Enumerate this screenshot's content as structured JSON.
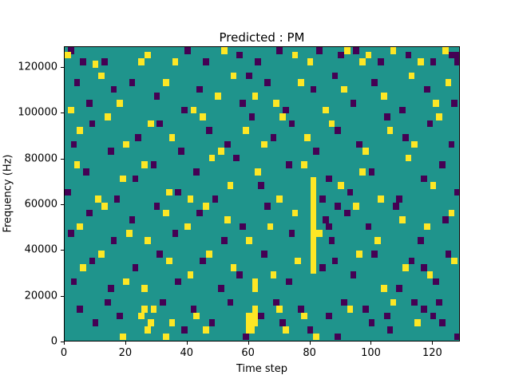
{
  "chart_data": {
    "type": "heatmap",
    "title": "Predicted : PM",
    "xlabel": "Time step",
    "ylabel": "Frequency (Hz)",
    "xlim": [
      0,
      129
    ],
    "ylim": [
      0,
      129000
    ],
    "xticks": [
      0,
      20,
      40,
      60,
      80,
      100,
      120
    ],
    "yticks": [
      0,
      20000,
      40000,
      60000,
      80000,
      100000,
      120000
    ],
    "grid": false,
    "legend": "none",
    "colors": {
      "background": "#1f948c",
      "purple": "#440154",
      "yellow": "#fde725"
    },
    "cell_size": {
      "x": 2,
      "y": 3000
    },
    "cells": [
      [
        2,
        126000,
        0
      ],
      [
        13,
        121000,
        0
      ],
      [
        40,
        126000,
        0
      ],
      [
        46,
        121000,
        0
      ],
      [
        57,
        124000,
        0
      ],
      [
        63,
        121000,
        0
      ],
      [
        70,
        126000,
        0
      ],
      [
        83,
        126000,
        0
      ],
      [
        90,
        124000,
        0
      ],
      [
        95,
        126000,
        0
      ],
      [
        103,
        121000,
        0
      ],
      [
        112,
        124000,
        0
      ],
      [
        120,
        121000,
        0
      ],
      [
        126,
        124000,
        0
      ],
      [
        6,
        121000,
        0
      ],
      [
        128,
        124000,
        0
      ],
      [
        128,
        121000,
        0
      ],
      [
        1,
        124000,
        1
      ],
      [
        10,
        120000,
        1
      ],
      [
        25,
        121000,
        1
      ],
      [
        27,
        124000,
        1
      ],
      [
        36,
        121000,
        1
      ],
      [
        52,
        126000,
        1
      ],
      [
        75,
        124000,
        1
      ],
      [
        80,
        121000,
        1
      ],
      [
        92,
        126000,
        1
      ],
      [
        97,
        121000,
        1
      ],
      [
        99,
        124000,
        1
      ],
      [
        107,
        126000,
        1
      ],
      [
        116,
        121000,
        1
      ],
      [
        124,
        126000,
        1
      ],
      [
        4,
        112000,
        0
      ],
      [
        8,
        103000,
        0
      ],
      [
        16,
        109000,
        0
      ],
      [
        22,
        112000,
        0
      ],
      [
        30,
        106000,
        0
      ],
      [
        39,
        100000,
        0
      ],
      [
        44,
        109000,
        0
      ],
      [
        58,
        103000,
        0
      ],
      [
        66,
        112000,
        0
      ],
      [
        72,
        100000,
        0
      ],
      [
        81,
        109000,
        0
      ],
      [
        88,
        115000,
        0
      ],
      [
        94,
        103000,
        0
      ],
      [
        101,
        112000,
        0
      ],
      [
        110,
        100000,
        0
      ],
      [
        118,
        109000,
        0
      ],
      [
        127,
        103000,
        0
      ],
      [
        60,
        115000,
        0
      ],
      [
        2,
        100000,
        1
      ],
      [
        12,
        115000,
        1
      ],
      [
        18,
        103000,
        1
      ],
      [
        33,
        112000,
        1
      ],
      [
        42,
        100000,
        1
      ],
      [
        50,
        106000,
        1
      ],
      [
        55,
        115000,
        1
      ],
      [
        62,
        106000,
        1
      ],
      [
        69,
        103000,
        1
      ],
      [
        77,
        112000,
        1
      ],
      [
        85,
        100000,
        1
      ],
      [
        91,
        109000,
        1
      ],
      [
        104,
        106000,
        1
      ],
      [
        113,
        115000,
        1
      ],
      [
        121,
        103000,
        1
      ],
      [
        125,
        112000,
        1
      ],
      [
        3,
        85000,
        0
      ],
      [
        9,
        94000,
        0
      ],
      [
        15,
        82000,
        0
      ],
      [
        24,
        88000,
        0
      ],
      [
        31,
        94000,
        0
      ],
      [
        38,
        82000,
        0
      ],
      [
        47,
        91000,
        0
      ],
      [
        53,
        85000,
        0
      ],
      [
        61,
        97000,
        0
      ],
      [
        68,
        88000,
        0
      ],
      [
        74,
        94000,
        0
      ],
      [
        82,
        82000,
        0
      ],
      [
        89,
        91000,
        0
      ],
      [
        96,
        85000,
        0
      ],
      [
        105,
        97000,
        0
      ],
      [
        111,
        88000,
        0
      ],
      [
        119,
        94000,
        0
      ],
      [
        126,
        85000,
        0
      ],
      [
        5,
        91000,
        1
      ],
      [
        14,
        97000,
        1
      ],
      [
        20,
        85000,
        1
      ],
      [
        28,
        94000,
        1
      ],
      [
        35,
        88000,
        1
      ],
      [
        45,
        97000,
        1
      ],
      [
        51,
        82000,
        1
      ],
      [
        59,
        91000,
        1
      ],
      [
        65,
        85000,
        1
      ],
      [
        71,
        97000,
        1
      ],
      [
        79,
        88000,
        1
      ],
      [
        87,
        94000,
        1
      ],
      [
        98,
        82000,
        1
      ],
      [
        106,
        91000,
        1
      ],
      [
        114,
        85000,
        1
      ],
      [
        122,
        97000,
        1
      ],
      [
        1,
        64000,
        0
      ],
      [
        7,
        73000,
        0
      ],
      [
        17,
        61000,
        0
      ],
      [
        23,
        70000,
        0
      ],
      [
        29,
        76000,
        0
      ],
      [
        37,
        64000,
        0
      ],
      [
        43,
        73000,
        0
      ],
      [
        49,
        61000,
        0
      ],
      [
        56,
        79000,
        0
      ],
      [
        64,
        67000,
        0
      ],
      [
        73,
        76000,
        0
      ],
      [
        84,
        61000,
        0
      ],
      [
        86,
        70000,
        0
      ],
      [
        93,
        64000,
        0
      ],
      [
        100,
        73000,
        0
      ],
      [
        109,
        61000,
        0
      ],
      [
        117,
        70000,
        0
      ],
      [
        123,
        76000,
        0
      ],
      [
        128,
        64000,
        0
      ],
      [
        4,
        76000,
        1
      ],
      [
        11,
        61000,
        1
      ],
      [
        19,
        70000,
        1
      ],
      [
        26,
        76000,
        1
      ],
      [
        34,
        64000,
        1
      ],
      [
        41,
        61000,
        1
      ],
      [
        48,
        79000,
        1
      ],
      [
        54,
        67000,
        1
      ],
      [
        63,
        73000,
        1
      ],
      [
        70,
        61000,
        1
      ],
      [
        78,
        76000,
        1
      ],
      [
        90,
        67000,
        1
      ],
      [
        97,
        73000,
        1
      ],
      [
        103,
        61000,
        1
      ],
      [
        112,
        79000,
        1
      ],
      [
        120,
        67000,
        1
      ],
      [
        81,
        30000,
        1
      ],
      [
        81,
        33000,
        1
      ],
      [
        81,
        36000,
        1
      ],
      [
        81,
        39000,
        1
      ],
      [
        81,
        42000,
        1
      ],
      [
        81,
        45000,
        1
      ],
      [
        81,
        48000,
        1
      ],
      [
        81,
        51000,
        1
      ],
      [
        81,
        54000,
        1
      ],
      [
        81,
        57000,
        1
      ],
      [
        81,
        60000,
        1
      ],
      [
        81,
        63000,
        1
      ],
      [
        81,
        66000,
        1
      ],
      [
        81,
        69000,
        1
      ],
      [
        2,
        46000,
        0
      ],
      [
        8,
        55000,
        0
      ],
      [
        16,
        43000,
        0
      ],
      [
        22,
        52000,
        0
      ],
      [
        30,
        58000,
        0
      ],
      [
        36,
        46000,
        0
      ],
      [
        44,
        55000,
        0
      ],
      [
        52,
        43000,
        0
      ],
      [
        58,
        49000,
        0
      ],
      [
        66,
        58000,
        0
      ],
      [
        74,
        46000,
        0
      ],
      [
        85,
        52000,
        0
      ],
      [
        87,
        43000,
        0
      ],
      [
        92,
        55000,
        0
      ],
      [
        99,
        49000,
        0
      ],
      [
        108,
        58000,
        0
      ],
      [
        116,
        43000,
        0
      ],
      [
        124,
        52000,
        0
      ],
      [
        89,
        58000,
        0
      ],
      [
        86,
        49000,
        0
      ],
      [
        5,
        49000,
        1
      ],
      [
        13,
        58000,
        1
      ],
      [
        21,
        46000,
        1
      ],
      [
        27,
        43000,
        1
      ],
      [
        33,
        55000,
        1
      ],
      [
        40,
        49000,
        1
      ],
      [
        46,
        58000,
        1
      ],
      [
        53,
        52000,
        1
      ],
      [
        60,
        43000,
        1
      ],
      [
        67,
        49000,
        1
      ],
      [
        75,
        55000,
        1
      ],
      [
        83,
        46000,
        1
      ],
      [
        95,
        58000,
        1
      ],
      [
        102,
        43000,
        1
      ],
      [
        110,
        52000,
        1
      ],
      [
        118,
        49000,
        1
      ],
      [
        126,
        55000,
        1
      ],
      [
        3,
        25000,
        0
      ],
      [
        9,
        34000,
        0
      ],
      [
        15,
        22000,
        0
      ],
      [
        23,
        31000,
        0
      ],
      [
        31,
        37000,
        0
      ],
      [
        37,
        25000,
        0
      ],
      [
        45,
        34000,
        0
      ],
      [
        51,
        22000,
        0
      ],
      [
        57,
        28000,
        0
      ],
      [
        65,
        37000,
        0
      ],
      [
        73,
        25000,
        0
      ],
      [
        84,
        31000,
        0
      ],
      [
        88,
        34000,
        0
      ],
      [
        94,
        28000,
        0
      ],
      [
        101,
        37000,
        0
      ],
      [
        109,
        22000,
        0
      ],
      [
        117,
        31000,
        0
      ],
      [
        125,
        37000,
        0
      ],
      [
        121,
        25000,
        0
      ],
      [
        113,
        34000,
        0
      ],
      [
        6,
        31000,
        1
      ],
      [
        12,
        37000,
        1
      ],
      [
        20,
        25000,
        1
      ],
      [
        26,
        22000,
        1
      ],
      [
        34,
        34000,
        1
      ],
      [
        41,
        28000,
        1
      ],
      [
        47,
        37000,
        1
      ],
      [
        55,
        31000,
        1
      ],
      [
        62,
        22000,
        1
      ],
      [
        62,
        25000,
        1
      ],
      [
        68,
        28000,
        1
      ],
      [
        76,
        34000,
        1
      ],
      [
        96,
        37000,
        1
      ],
      [
        104,
        22000,
        1
      ],
      [
        111,
        31000,
        1
      ],
      [
        119,
        28000,
        1
      ],
      [
        127,
        34000,
        1
      ],
      [
        60,
        4000,
        1
      ],
      [
        60,
        7000,
        1
      ],
      [
        60,
        10000,
        1
      ],
      [
        61,
        4000,
        1
      ],
      [
        61,
        7000,
        1
      ],
      [
        61,
        10000,
        1
      ],
      [
        62,
        7000,
        1
      ],
      [
        62,
        10000,
        1
      ],
      [
        62,
        13000,
        1
      ],
      [
        19,
        1000,
        1
      ],
      [
        25,
        10000,
        1
      ],
      [
        26,
        13000,
        1
      ],
      [
        27,
        4000,
        1
      ],
      [
        28,
        7000,
        1
      ],
      [
        29,
        13000,
        1
      ],
      [
        33,
        1000,
        1
      ],
      [
        35,
        7000,
        1
      ],
      [
        43,
        10000,
        1
      ],
      [
        46,
        4000,
        1
      ],
      [
        70,
        13000,
        1
      ],
      [
        72,
        4000,
        1
      ],
      [
        78,
        10000,
        1
      ],
      [
        82,
        1000,
        1
      ],
      [
        93,
        13000,
        1
      ],
      [
        107,
        16000,
        1
      ],
      [
        115,
        7000,
        1
      ],
      [
        5,
        13000,
        0
      ],
      [
        10,
        7000,
        0
      ],
      [
        14,
        16000,
        0
      ],
      [
        18,
        10000,
        0
      ],
      [
        32,
        16000,
        0
      ],
      [
        39,
        4000,
        0
      ],
      [
        42,
        13000,
        0
      ],
      [
        48,
        7000,
        0
      ],
      [
        54,
        16000,
        0
      ],
      [
        59,
        1000,
        0
      ],
      [
        64,
        10000,
        0
      ],
      [
        69,
        16000,
        0
      ],
      [
        71,
        7000,
        0
      ],
      [
        77,
        13000,
        0
      ],
      [
        80,
        4000,
        0
      ],
      [
        86,
        10000,
        0
      ],
      [
        89,
        1000,
        0
      ],
      [
        91,
        16000,
        0
      ],
      [
        98,
        13000,
        0
      ],
      [
        100,
        7000,
        0
      ],
      [
        105,
        10000,
        0
      ],
      [
        106,
        4000,
        0
      ],
      [
        114,
        16000,
        0
      ],
      [
        117,
        13000,
        0
      ],
      [
        120,
        10000,
        0
      ],
      [
        122,
        16000,
        0
      ],
      [
        123,
        7000,
        0
      ],
      [
        128,
        1000,
        0
      ]
    ]
  }
}
